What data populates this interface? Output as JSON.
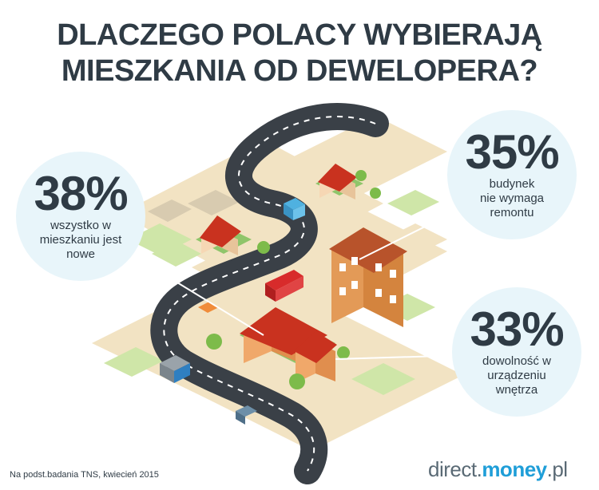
{
  "title": {
    "line1": "DLACZEGO POLACY WYBIERAJĄ",
    "line2": "MIESZKANIA OD DEWELOPERA?"
  },
  "stats": [
    {
      "value": "38%",
      "lines": [
        "wszystko w",
        "mieszkaniu jest",
        "nowe"
      ]
    },
    {
      "value": "35%",
      "lines": [
        "budynek",
        "nie wymaga",
        "remontu"
      ]
    },
    {
      "value": "33%",
      "lines": [
        "dowolność w",
        "urządzeniu",
        "wnętrza"
      ]
    }
  ],
  "footer": {
    "source": "Na podst.badania TNS, kwiecień 2015",
    "brand_part1": "direct.",
    "brand_part2": "money",
    "brand_part3": ".pl"
  },
  "colors": {
    "title": "#2f3b45",
    "bubble": "#e8f5fa",
    "road": "#3a4047",
    "ground": "#f2e3c3",
    "grass": "#cfe6a8",
    "roof": "#c9321f",
    "brand_accent": "#1f9ed8"
  }
}
